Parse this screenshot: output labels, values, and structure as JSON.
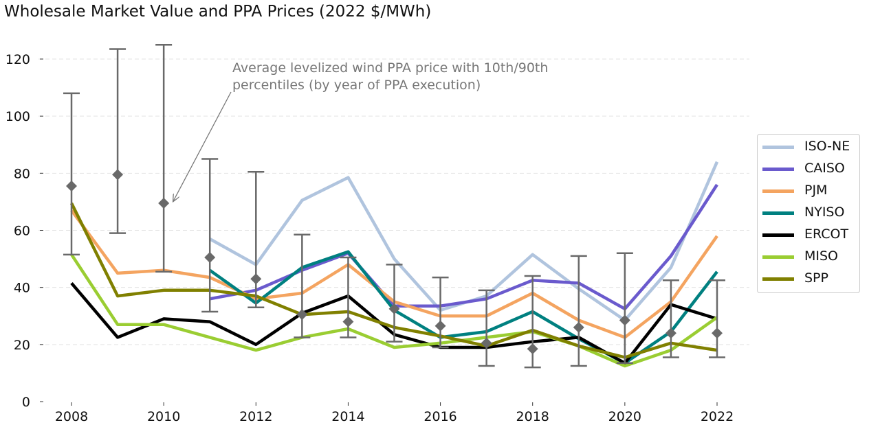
{
  "chart_data": {
    "type": "line",
    "title": "Wholesale Market Value and PPA Prices (2022 $/MWh)",
    "xlabel": "",
    "ylabel": "",
    "xlim": [
      2007.3,
      2022.7
    ],
    "ylim": [
      0,
      125
    ],
    "x_ticks": [
      "2008",
      "2010",
      "2012",
      "2014",
      "2016",
      "2018",
      "2020",
      "2022"
    ],
    "y_ticks": [
      "0",
      "20",
      "40",
      "60",
      "80",
      "100",
      "120"
    ],
    "grid": "horizontal dashed",
    "legend_position": "right",
    "series": [
      {
        "name": "ISO-NE",
        "color": "#b0c4de",
        "x": [
          2011,
          2012,
          2013,
          2014,
          2015,
          2016,
          2017,
          2018,
          2019,
          2020,
          2021,
          2022
        ],
        "values": [
          57,
          48,
          70.5,
          78.5,
          50,
          32,
          37,
          51.5,
          39.5,
          28.5,
          47,
          84
        ]
      },
      {
        "name": "CAISO",
        "color": "#6a5acd",
        "x": [
          2011,
          2012,
          2013,
          2014,
          2015,
          2016,
          2017,
          2018,
          2019,
          2020,
          2021,
          2022
        ],
        "values": [
          36,
          39,
          46,
          52,
          33.5,
          33.5,
          36,
          42.5,
          41.5,
          32.5,
          51,
          76
        ]
      },
      {
        "name": "PJM",
        "color": "#f4a460",
        "x": [
          2008,
          2009,
          2010,
          2011,
          2012,
          2013,
          2014,
          2015,
          2016,
          2017,
          2018,
          2019,
          2020,
          2021,
          2022
        ],
        "values": [
          67,
          45,
          46,
          43.5,
          36,
          38,
          48,
          35,
          30,
          30,
          38,
          28.5,
          22.5,
          35,
          58
        ]
      },
      {
        "name": "NYISO",
        "color": "#008080",
        "x": [
          2011,
          2012,
          2013,
          2014,
          2015,
          2016,
          2017,
          2018,
          2019,
          2020,
          2021,
          2022
        ],
        "values": [
          46,
          34.5,
          47,
          52.5,
          32,
          22.5,
          24.5,
          31.5,
          22,
          13.5,
          24.5,
          45.5
        ]
      },
      {
        "name": "ERCOT",
        "color": "#000000",
        "x": [
          2008,
          2009,
          2010,
          2011,
          2012,
          2013,
          2014,
          2015,
          2016,
          2017,
          2018,
          2019,
          2020,
          2021,
          2022
        ],
        "values": [
          41.5,
          22.5,
          29,
          28,
          20,
          31,
          37,
          23.5,
          19,
          19,
          21,
          22.5,
          13.5,
          34,
          29
        ]
      },
      {
        "name": "MISO",
        "color": "#9acd32",
        "x": [
          2008,
          2009,
          2010,
          2011,
          2012,
          2013,
          2014,
          2015,
          2016,
          2017,
          2018,
          2019,
          2020,
          2021,
          2022
        ],
        "values": [
          51.5,
          27,
          27,
          22.5,
          18,
          22.5,
          25.5,
          19,
          20.5,
          22.5,
          24.5,
          19.5,
          12.5,
          18,
          29.5
        ]
      },
      {
        "name": "SPP",
        "color": "#808000",
        "x": [
          2008,
          2009,
          2010,
          2011,
          2012,
          2013,
          2014,
          2015,
          2016,
          2017,
          2018,
          2019,
          2020,
          2021,
          2022
        ],
        "values": [
          69.5,
          37,
          39,
          39,
          37,
          30.5,
          31.5,
          26,
          23,
          19.5,
          25,
          19.5,
          15.5,
          20.5,
          18
        ]
      }
    ],
    "ppa_price": {
      "name": "Average levelized wind PPA price with 10th/90th percentiles (by year of PPA execution)",
      "color": "#696969",
      "x": [
        2008,
        2009,
        2010,
        2011,
        2012,
        2013,
        2014,
        2015,
        2016,
        2017,
        2018,
        2019,
        2020,
        2021,
        2022
      ],
      "mean": [
        75.5,
        79.5,
        69.5,
        50.5,
        43,
        30.5,
        28,
        32.5,
        26.5,
        20.5,
        18.5,
        26,
        28.5,
        24,
        24
      ],
      "p10": [
        51.5,
        59,
        45.5,
        31.5,
        33,
        22.5,
        22.5,
        21,
        19,
        12.5,
        12,
        12.5,
        13.5,
        15.5,
        15.5
      ],
      "p90": [
        108,
        123.5,
        125,
        85,
        80.5,
        58.5,
        50.5,
        48,
        43.5,
        39,
        44,
        51,
        52,
        42.5,
        42.5
      ]
    },
    "annotations": [
      {
        "text_lines": [
          "Average levelized wind PPA price with 10th/90th",
          "percentiles (by year of PPA execution)"
        ],
        "arrow_to": {
          "x": 2010.2,
          "y": 70
        }
      }
    ]
  }
}
